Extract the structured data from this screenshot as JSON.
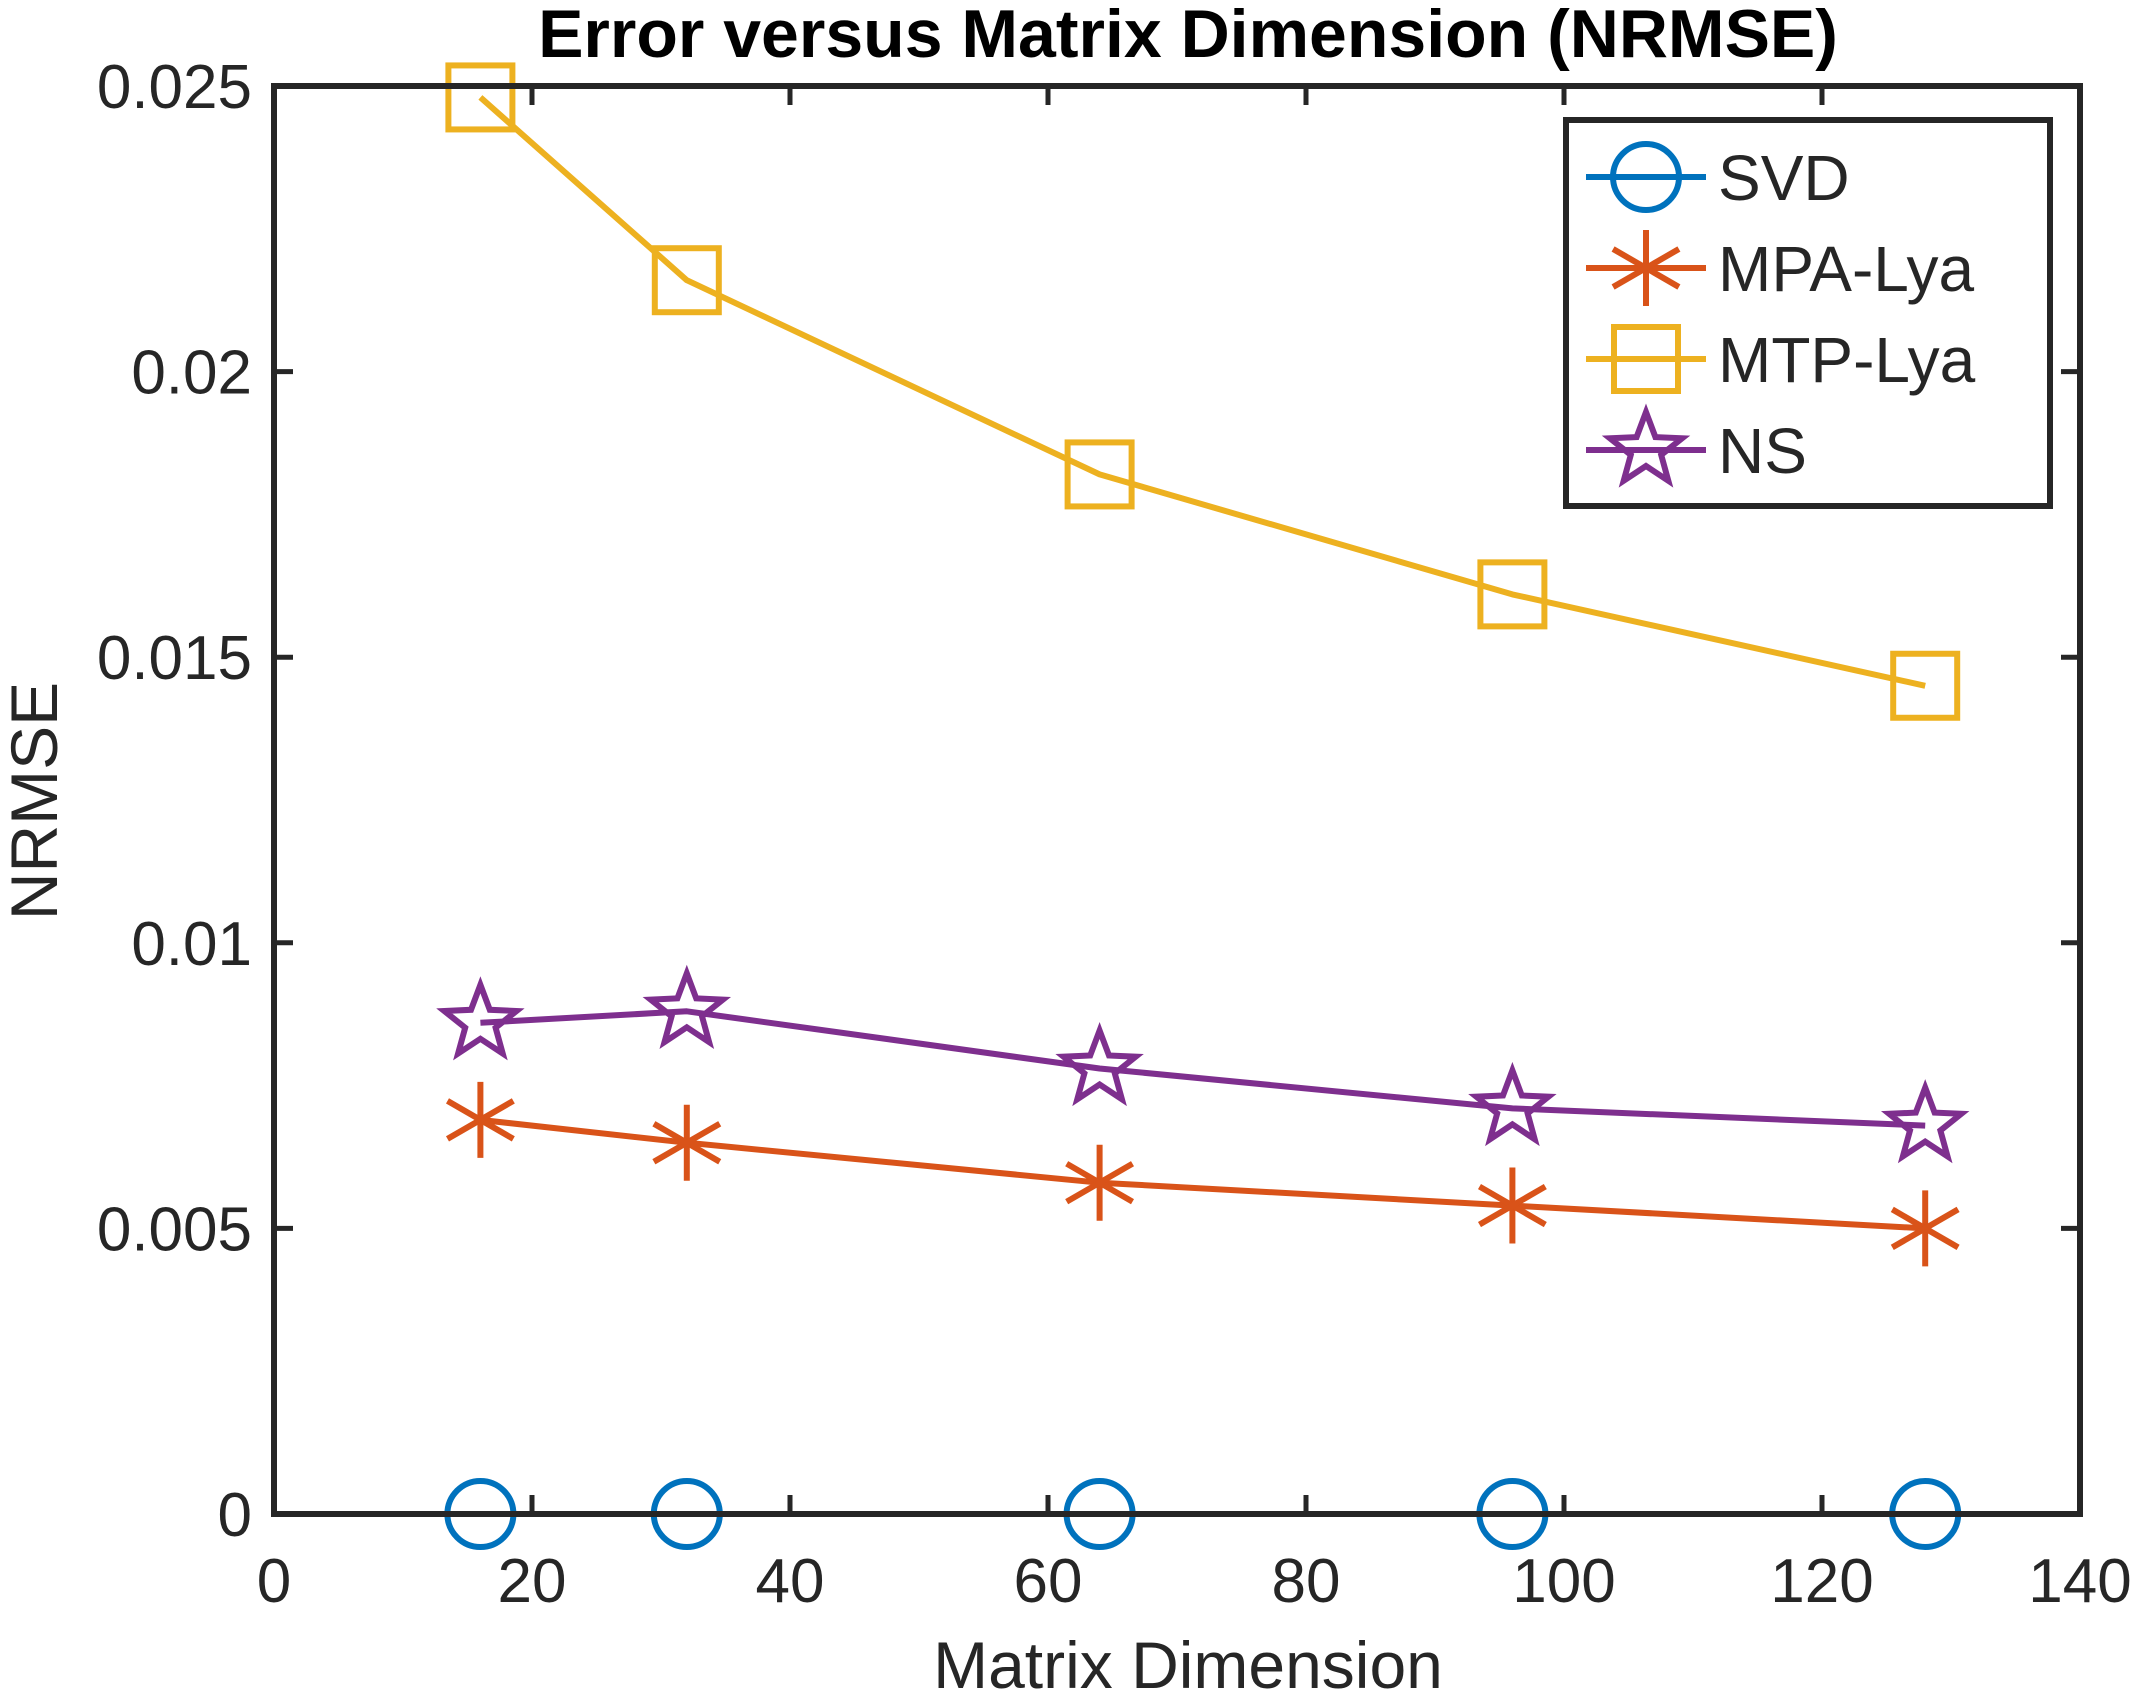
{
  "chart_data": {
    "type": "line",
    "title": "Error versus Matrix Dimension (NRMSE)",
    "xlabel": "Matrix Dimension",
    "ylabel": "NRMSE",
    "xlim": [
      0,
      140
    ],
    "ylim": [
      0,
      0.025
    ],
    "xticks": [
      0,
      20,
      40,
      60,
      80,
      100,
      120,
      140
    ],
    "yticks": [
      0,
      0.005,
      0.01,
      0.015,
      0.02,
      0.025
    ],
    "xtick_labels": [
      "0",
      "20",
      "40",
      "60",
      "80",
      "100",
      "120",
      "140"
    ],
    "ytick_labels": [
      "0",
      "0.005",
      "0.01",
      "0.015",
      "0.02",
      "0.025"
    ],
    "grid": false,
    "legend_position": "top-right",
    "x": [
      16,
      32,
      64,
      96,
      128
    ],
    "series": [
      {
        "name": "SVD",
        "marker": "circle",
        "color": "#0072BD",
        "values": [
          0,
          0,
          0,
          0,
          0
        ]
      },
      {
        "name": "MPA-Lya",
        "marker": "asterisk",
        "color": "#D95319",
        "values": [
          0.0069,
          0.0065,
          0.0058,
          0.0054,
          0.005
        ]
      },
      {
        "name": "MTP-Lya",
        "marker": "square",
        "color": "#EDB120",
        "values": [
          0.0248,
          0.0216,
          0.0182,
          0.0161,
          0.0145
        ]
      },
      {
        "name": "NS",
        "marker": "star",
        "color": "#7E2F8E",
        "values": [
          0.0086,
          0.0088,
          0.0078,
          0.0071,
          0.0068
        ]
      }
    ]
  }
}
